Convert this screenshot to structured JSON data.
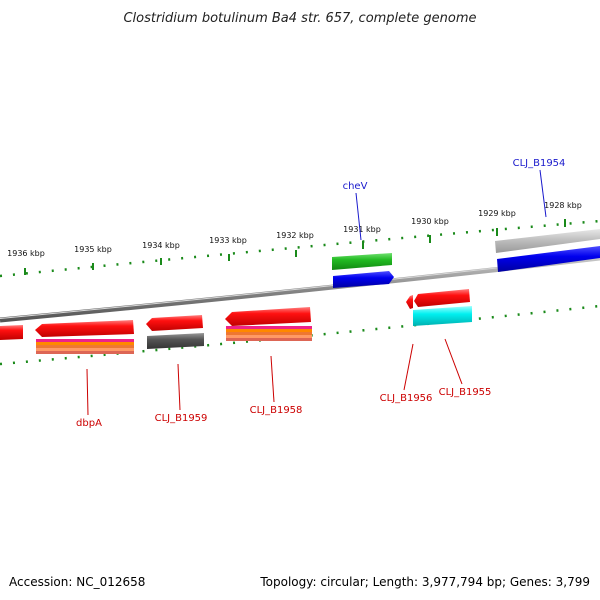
{
  "title": "Clostridium botulinum Ba4 str. 657, complete genome",
  "footer": {
    "accession": "Accession: NC_012658",
    "summary": "Topology: circular; Length: 3,977,794 bp; Genes: 3,799"
  },
  "ticks": [
    "1936 kbp",
    "1935 kbp",
    "1934 kbp",
    "1933 kbp",
    "1932 kbp",
    "1931 kbp",
    "1930 kbp",
    "1929 kbp",
    "1928 kbp"
  ],
  "labels": {
    "cheV": "cheV",
    "CLJ_B1954": "CLJ_B1954",
    "dbpA": "dbpA",
    "CLJ_B1959": "CLJ_B1959",
    "CLJ_B1958": "CLJ_B1958",
    "CLJ_B1956": "CLJ_B1956",
    "CLJ_B1955": "CLJ_B1955"
  },
  "colors": {
    "forward_gene": "#ff1a1a",
    "label_red": "#cc0000",
    "label_blue": "#1a1acc",
    "ruler_green": "#1a8a1a",
    "backbone": "#888888"
  }
}
